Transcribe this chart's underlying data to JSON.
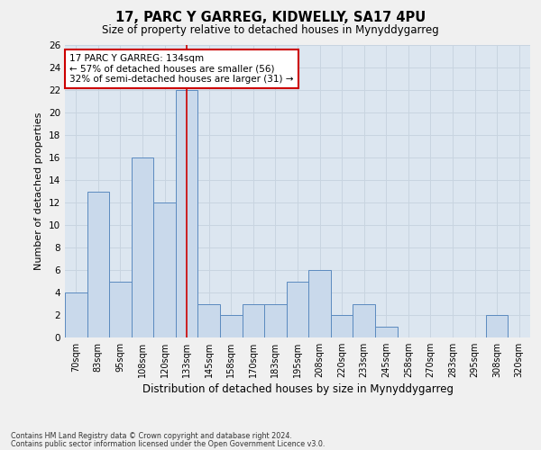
{
  "title": "17, PARC Y GARREG, KIDWELLY, SA17 4PU",
  "subtitle": "Size of property relative to detached houses in Mynyddygarreg",
  "xlabel": "Distribution of detached houses by size in Mynyddygarreg",
  "ylabel": "Number of detached properties",
  "categories": [
    "70sqm",
    "83sqm",
    "95sqm",
    "108sqm",
    "120sqm",
    "133sqm",
    "145sqm",
    "158sqm",
    "170sqm",
    "183sqm",
    "195sqm",
    "208sqm",
    "220sqm",
    "233sqm",
    "245sqm",
    "258sqm",
    "270sqm",
    "283sqm",
    "295sqm",
    "308sqm",
    "320sqm"
  ],
  "values": [
    4,
    13,
    5,
    16,
    12,
    22,
    3,
    2,
    3,
    3,
    5,
    6,
    2,
    3,
    1,
    0,
    0,
    0,
    0,
    2,
    0
  ],
  "bar_color": "#c9d9eb",
  "bar_edge_color": "#5b8abf",
  "vline_x": 5,
  "vline_color": "#cc0000",
  "annotation_text": "17 PARC Y GARREG: 134sqm\n← 57% of detached houses are smaller (56)\n32% of semi-detached houses are larger (31) →",
  "annotation_box_color": "#ffffff",
  "annotation_box_edge": "#cc0000",
  "ylim": [
    0,
    26
  ],
  "yticks": [
    0,
    2,
    4,
    6,
    8,
    10,
    12,
    14,
    16,
    18,
    20,
    22,
    24,
    26
  ],
  "footer1": "Contains HM Land Registry data © Crown copyright and database right 2024.",
  "footer2": "Contains public sector information licensed under the Open Government Licence v3.0.",
  "grid_color": "#c8d4e0",
  "bg_color": "#dce6f0",
  "fig_bg_color": "#f0f0f0"
}
